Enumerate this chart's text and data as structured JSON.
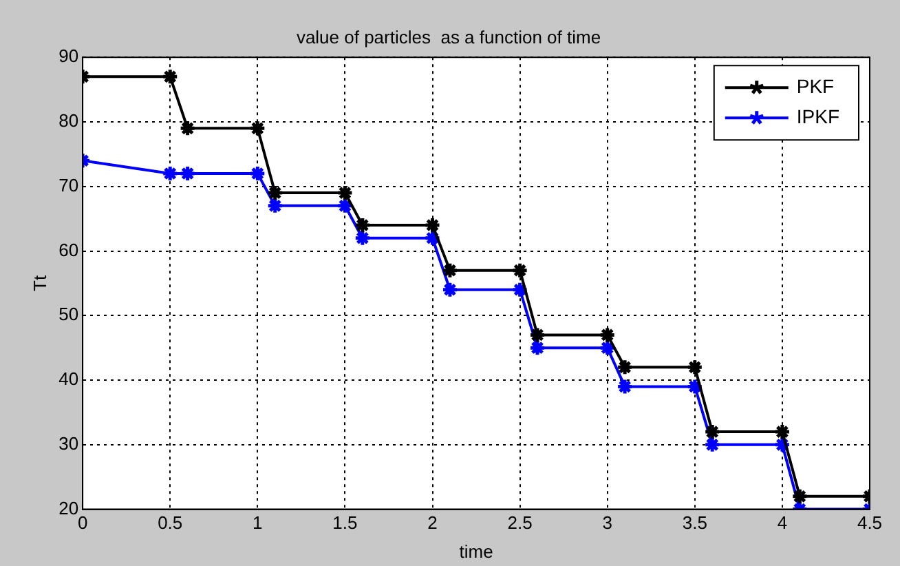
{
  "chart_data": {
    "type": "line",
    "title": "value of particles  as a function of time",
    "xlabel": "time",
    "ylabel": "Tt",
    "x": [
      0,
      0.5,
      0.6,
      1,
      1.1,
      1.5,
      1.6,
      2,
      2.1,
      2.5,
      2.6,
      3,
      3.1,
      3.5,
      3.6,
      4,
      4.1,
      4.5
    ],
    "series": [
      {
        "name": "PKF",
        "color": "#000000",
        "values": [
          87,
          87,
          79,
          79,
          69,
          69,
          64,
          64,
          57,
          57,
          47,
          47,
          42,
          42,
          32,
          32,
          22,
          22
        ]
      },
      {
        "name": "IPKF",
        "color": "#0000ff",
        "values": [
          74,
          72,
          72,
          72,
          67,
          67,
          62,
          62,
          54,
          54,
          45,
          45,
          39,
          39,
          30,
          30,
          20,
          20
        ]
      }
    ],
    "xlim": [
      0,
      4.5
    ],
    "xticks": [
      0,
      0.5,
      1,
      1.5,
      2,
      2.5,
      3,
      3.5,
      4,
      4.5
    ],
    "ylim": [
      20,
      90
    ],
    "yticks": [
      20,
      30,
      40,
      50,
      60,
      70,
      80,
      90
    ],
    "grid": true,
    "legend": "top right",
    "marker": "cross",
    "line_style": "solid"
  }
}
